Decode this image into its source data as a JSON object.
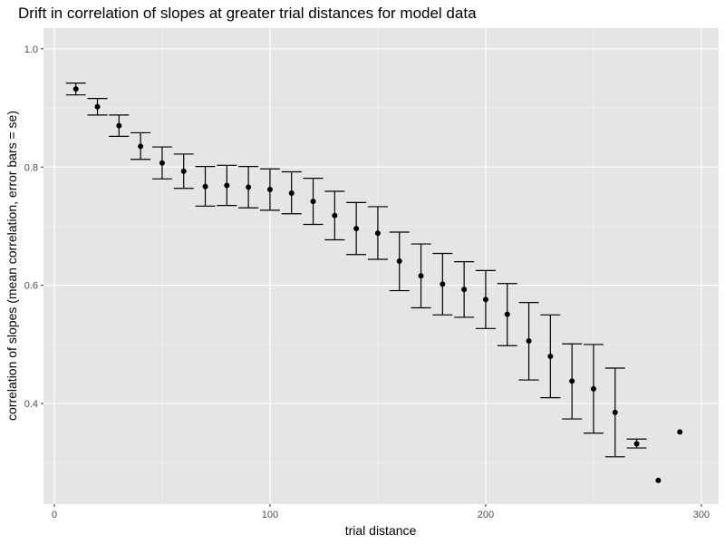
{
  "chart_data": {
    "type": "scatter",
    "title": "Drift in correlation of slopes at greater trial distances for model data",
    "xlabel": "trial distance",
    "ylabel": "correlation of slopes (mean correlation, error bars = se)",
    "xlim": [
      -5,
      308
    ],
    "ylim": [
      0.23,
      1.035
    ],
    "x_ticks": [
      0,
      100,
      200,
      300
    ],
    "x_tick_labels": [
      "0",
      "100",
      "200",
      "300"
    ],
    "y_ticks": [
      0.4,
      0.6,
      0.8,
      1.0
    ],
    "y_tick_labels": [
      "0.4",
      "0.6",
      "0.8",
      "1.0"
    ],
    "grid": true,
    "background_color": "#e5e5e5",
    "grid_major_color": "#ffffff",
    "point_color": "#000000",
    "series": [
      {
        "x": [
          10,
          20,
          30,
          40,
          50,
          60,
          70,
          80,
          90,
          100,
          110,
          120,
          130,
          140,
          150,
          160,
          170,
          180,
          190,
          200,
          210,
          220,
          230,
          240,
          250,
          260,
          270,
          280,
          290
        ],
        "y": [
          0.932,
          0.902,
          0.87,
          0.835,
          0.807,
          0.793,
          0.767,
          0.769,
          0.766,
          0.762,
          0.756,
          0.742,
          0.718,
          0.696,
          0.688,
          0.641,
          0.616,
          0.602,
          0.593,
          0.576,
          0.551,
          0.506,
          0.48,
          0.438,
          0.425,
          0.385,
          0.332,
          0.27,
          0.352
        ],
        "ymin": [
          0.922,
          0.888,
          0.852,
          0.813,
          0.78,
          0.764,
          0.734,
          0.735,
          0.731,
          0.727,
          0.721,
          0.703,
          0.677,
          0.652,
          0.644,
          0.591,
          0.562,
          0.55,
          0.546,
          0.527,
          0.498,
          0.44,
          0.41,
          0.374,
          0.35,
          0.31,
          0.325,
          null,
          null
        ],
        "ymax": [
          0.942,
          0.916,
          0.888,
          0.858,
          0.834,
          0.822,
          0.801,
          0.803,
          0.801,
          0.797,
          0.792,
          0.781,
          0.759,
          0.74,
          0.733,
          0.69,
          0.67,
          0.654,
          0.64,
          0.625,
          0.603,
          0.571,
          0.55,
          0.501,
          0.5,
          0.46,
          0.34,
          null,
          null
        ]
      }
    ]
  }
}
